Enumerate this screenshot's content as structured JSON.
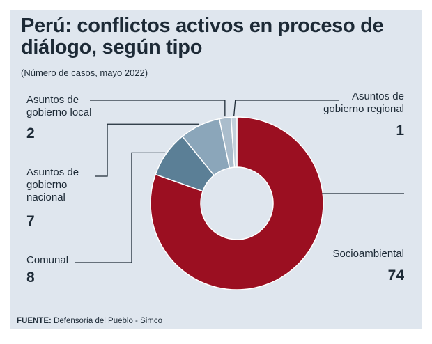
{
  "title": "Perú: conflictos activos en proceso de diálogo, según tipo",
  "subtitle": "(Número de casos, mayo 2022)",
  "source": {
    "label": "FUENTE:",
    "text": "Defensoría del Pueblo - Simco"
  },
  "chart_data": {
    "type": "pie",
    "style": "donut",
    "categories": [
      "Socioambiental",
      "Comunal",
      "Asuntos de gobierno nacional",
      "Asuntos de gobierno local",
      "Asuntos de gobierno regional"
    ],
    "label_lines": [
      [
        "Socioambiental"
      ],
      [
        "Comunal"
      ],
      [
        "Asuntos de",
        "gobierno",
        "nacional"
      ],
      [
        "Asuntos de",
        "gobierno local"
      ],
      [
        "Asuntos de",
        "gobierno regional"
      ]
    ],
    "values": [
      74,
      8,
      7,
      2,
      1
    ],
    "colors": [
      "#9b0f21",
      "#5b7f96",
      "#8ba6ba",
      "#aabdcc",
      "#c2d0db"
    ]
  }
}
